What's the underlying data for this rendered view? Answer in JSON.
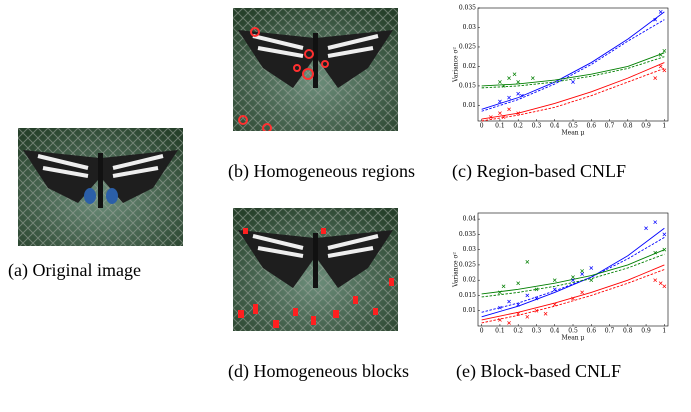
{
  "captions": {
    "a": "(a) Original image",
    "b": "(b) Homogeneous regions",
    "c": "(c) Region-based CNLF",
    "d": "(d) Homogeneous blocks",
    "e": "(e) Block-based CNLF"
  },
  "chart_data": [
    {
      "type": "scatter",
      "xlabel": "Mean μ",
      "ylabel": "Variance σ²",
      "xlim": [
        -0.02,
        1.02
      ],
      "xticks": [
        0,
        0.1,
        0.2,
        0.3,
        0.4,
        0.5,
        0.6,
        0.7,
        0.8,
        0.9,
        1
      ],
      "ylim": [
        0.006,
        0.035
      ],
      "yticks": [
        0.01,
        0.015,
        0.02,
        0.025,
        0.03,
        0.035
      ],
      "series": [
        {
          "mode": "lines",
          "dash": false,
          "color": "#0000ff",
          "x": [
            0,
            0.2,
            0.4,
            0.6,
            0.8,
            1
          ],
          "values": [
            0.009,
            0.012,
            0.016,
            0.021,
            0.027,
            0.034
          ]
        },
        {
          "mode": "lines",
          "dash": true,
          "color": "#0000ff",
          "x": [
            0,
            0.2,
            0.4,
            0.6,
            0.8,
            1
          ],
          "values": [
            0.0085,
            0.0115,
            0.0155,
            0.0205,
            0.0265,
            0.032
          ]
        },
        {
          "mode": "lines",
          "dash": false,
          "color": "#007f00",
          "x": [
            0,
            0.2,
            0.4,
            0.6,
            0.8,
            1
          ],
          "values": [
            0.015,
            0.0155,
            0.0165,
            0.018,
            0.02,
            0.0235
          ]
        },
        {
          "mode": "lines",
          "dash": true,
          "color": "#007f00",
          "x": [
            0,
            0.2,
            0.4,
            0.6,
            0.8,
            1
          ],
          "values": [
            0.0145,
            0.015,
            0.016,
            0.0175,
            0.0195,
            0.0225
          ]
        },
        {
          "mode": "lines",
          "dash": false,
          "color": "#ff0000",
          "x": [
            0,
            0.2,
            0.4,
            0.6,
            0.8,
            1
          ],
          "values": [
            0.0065,
            0.008,
            0.0105,
            0.0135,
            0.017,
            0.021
          ]
        },
        {
          "mode": "lines",
          "dash": true,
          "color": "#ff0000",
          "x": [
            0,
            0.2,
            0.4,
            0.6,
            0.8,
            1
          ],
          "values": [
            0.006,
            0.0075,
            0.0095,
            0.0125,
            0.016,
            0.0195
          ]
        },
        {
          "mode": "markers",
          "color": "#0000ff",
          "x": [
            0.1,
            0.15,
            0.2,
            0.22,
            0.5,
            0.95,
            0.98
          ],
          "values": [
            0.011,
            0.012,
            0.013,
            0.0125,
            0.016,
            0.032,
            0.034
          ]
        },
        {
          "mode": "markers",
          "color": "#007f00",
          "x": [
            0.1,
            0.12,
            0.15,
            0.18,
            0.2,
            0.28,
            0.98,
            1
          ],
          "values": [
            0.016,
            0.015,
            0.017,
            0.018,
            0.016,
            0.017,
            0.023,
            0.024
          ]
        },
        {
          "mode": "markers",
          "color": "#ff0000",
          "x": [
            0.05,
            0.1,
            0.12,
            0.15,
            0.2,
            0.95,
            0.98,
            1
          ],
          "values": [
            0.007,
            0.008,
            0.007,
            0.009,
            0.008,
            0.017,
            0.02,
            0.019
          ]
        }
      ]
    },
    {
      "type": "scatter",
      "xlabel": "Mean μ",
      "ylabel": "Variance σ²",
      "xlim": [
        -0.02,
        1.02
      ],
      "xticks": [
        0,
        0.1,
        0.2,
        0.3,
        0.4,
        0.5,
        0.6,
        0.7,
        0.8,
        0.9,
        1
      ],
      "ylim": [
        0.005,
        0.042
      ],
      "yticks": [
        0.01,
        0.015,
        0.02,
        0.025,
        0.03,
        0.035,
        0.04
      ],
      "series": [
        {
          "mode": "lines",
          "dash": false,
          "color": "#0000ff",
          "x": [
            0,
            0.2,
            0.4,
            0.6,
            0.8,
            1
          ],
          "values": [
            0.008,
            0.0115,
            0.016,
            0.021,
            0.028,
            0.037
          ]
        },
        {
          "mode": "lines",
          "dash": true,
          "color": "#0000ff",
          "x": [
            0,
            0.2,
            0.4,
            0.6,
            0.8,
            1
          ],
          "values": [
            0.0095,
            0.0125,
            0.0165,
            0.021,
            0.027,
            0.034
          ]
        },
        {
          "mode": "lines",
          "dash": false,
          "color": "#007f00",
          "x": [
            0,
            0.2,
            0.4,
            0.6,
            0.8,
            1
          ],
          "values": [
            0.0155,
            0.017,
            0.019,
            0.0215,
            0.025,
            0.03
          ]
        },
        {
          "mode": "lines",
          "dash": true,
          "color": "#007f00",
          "x": [
            0,
            0.2,
            0.4,
            0.6,
            0.8,
            1
          ],
          "values": [
            0.0145,
            0.016,
            0.018,
            0.0205,
            0.024,
            0.0285
          ]
        },
        {
          "mode": "lines",
          "dash": false,
          "color": "#ff0000",
          "x": [
            0,
            0.2,
            0.4,
            0.6,
            0.8,
            1
          ],
          "values": [
            0.007,
            0.0095,
            0.0125,
            0.016,
            0.02,
            0.025
          ]
        },
        {
          "mode": "lines",
          "dash": true,
          "color": "#ff0000",
          "x": [
            0,
            0.2,
            0.4,
            0.6,
            0.8,
            1
          ],
          "values": [
            0.006,
            0.0085,
            0.0115,
            0.015,
            0.019,
            0.0235
          ]
        },
        {
          "mode": "markers",
          "color": "#0000ff",
          "x": [
            0.1,
            0.15,
            0.2,
            0.25,
            0.3,
            0.4,
            0.5,
            0.55,
            0.6,
            0.9,
            0.95,
            1
          ],
          "values": [
            0.011,
            0.013,
            0.012,
            0.015,
            0.014,
            0.017,
            0.02,
            0.022,
            0.024,
            0.037,
            0.039,
            0.035
          ]
        },
        {
          "mode": "markers",
          "color": "#007f00",
          "x": [
            0.1,
            0.12,
            0.2,
            0.25,
            0.3,
            0.4,
            0.5,
            0.55,
            0.6,
            0.95,
            1
          ],
          "values": [
            0.016,
            0.018,
            0.019,
            0.026,
            0.017,
            0.02,
            0.021,
            0.023,
            0.02,
            0.029,
            0.03
          ]
        },
        {
          "mode": "markers",
          "color": "#ff0000",
          "x": [
            0.1,
            0.15,
            0.2,
            0.25,
            0.3,
            0.35,
            0.4,
            0.5,
            0.55,
            0.95,
            0.98,
            1
          ],
          "values": [
            0.007,
            0.006,
            0.009,
            0.008,
            0.01,
            0.009,
            0.012,
            0.014,
            0.016,
            0.02,
            0.019,
            0.018
          ]
        }
      ]
    }
  ]
}
